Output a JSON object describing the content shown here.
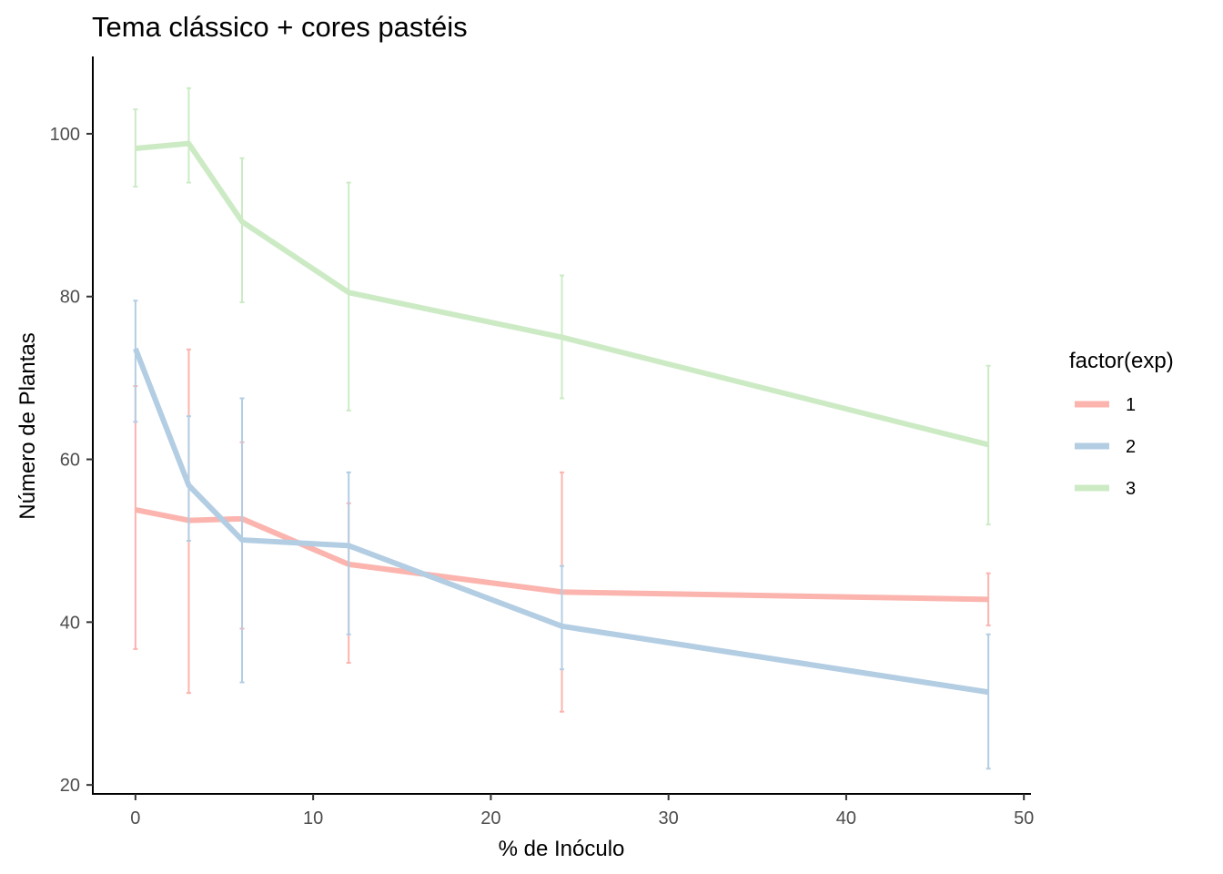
{
  "chart_data": {
    "type": "line",
    "title": "Tema clássico + cores pastéis",
    "xlabel": "% de Inóculo",
    "ylabel": "Número de Plantas",
    "xlim": [
      -2.4,
      50.4
    ],
    "ylim": [
      18.9,
      109.5
    ],
    "x_ticks": [
      0,
      10,
      20,
      30,
      40,
      50
    ],
    "y_ticks": [
      20,
      40,
      60,
      80,
      100
    ],
    "grid": false,
    "legend": {
      "title": "factor(exp)",
      "position": "right"
    },
    "series": [
      {
        "name": "1",
        "color": "#FBB4AE",
        "points": [
          {
            "x": 0,
            "y": 53.8,
            "ymin": 36.7,
            "ymax": 69.0
          },
          {
            "x": 3,
            "y": 52.5,
            "ymin": 31.3,
            "ymax": 73.5
          },
          {
            "x": 6,
            "y": 52.7,
            "ymin": 39.2,
            "ymax": 62.1
          },
          {
            "x": 12,
            "y": 47.1,
            "ymin": 35.0,
            "ymax": 54.6
          },
          {
            "x": 24,
            "y": 43.7,
            "ymin": 29.0,
            "ymax": 58.4
          },
          {
            "x": 48,
            "y": 42.8,
            "ymin": 39.6,
            "ymax": 46.0
          }
        ]
      },
      {
        "name": "2",
        "color": "#B3CDE3",
        "points": [
          {
            "x": 0,
            "y": 73.6,
            "ymin": 64.6,
            "ymax": 79.5
          },
          {
            "x": 3,
            "y": 56.8,
            "ymin": 50.0,
            "ymax": 65.3
          },
          {
            "x": 6,
            "y": 50.1,
            "ymin": 32.6,
            "ymax": 67.5
          },
          {
            "x": 12,
            "y": 49.4,
            "ymin": 38.5,
            "ymax": 58.4
          },
          {
            "x": 24,
            "y": 39.5,
            "ymin": 34.2,
            "ymax": 46.9
          },
          {
            "x": 48,
            "y": 31.4,
            "ymin": 22.0,
            "ymax": 38.5
          }
        ]
      },
      {
        "name": "3",
        "color": "#CCEBC5",
        "points": [
          {
            "x": 0,
            "y": 98.2,
            "ymin": 93.5,
            "ymax": 103.0
          },
          {
            "x": 3,
            "y": 98.8,
            "ymin": 94.0,
            "ymax": 105.6
          },
          {
            "x": 6,
            "y": 89.2,
            "ymin": 79.3,
            "ymax": 97.0
          },
          {
            "x": 12,
            "y": 80.5,
            "ymin": 66.0,
            "ymax": 94.0
          },
          {
            "x": 24,
            "y": 75.0,
            "ymin": 67.5,
            "ymax": 82.6
          },
          {
            "x": 48,
            "y": 61.8,
            "ymin": 52.0,
            "ymax": 71.5
          }
        ]
      }
    ]
  }
}
